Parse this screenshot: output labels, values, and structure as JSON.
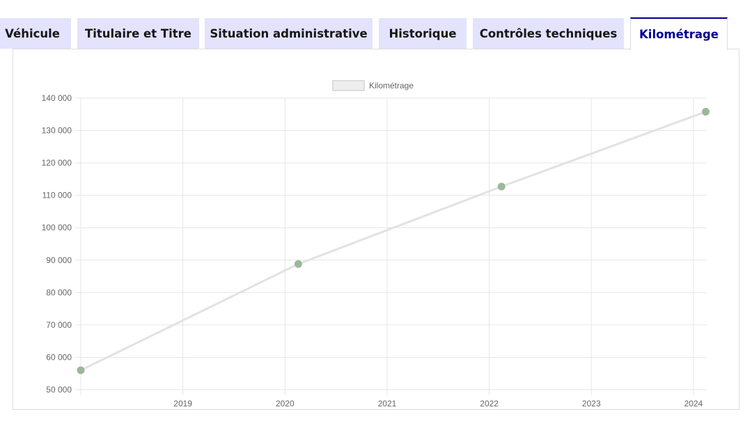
{
  "tabs": [
    {
      "label": "Véhicule",
      "active": false
    },
    {
      "label": "Titulaire et Titre",
      "active": false
    },
    {
      "label": "Situation administrative",
      "active": false
    },
    {
      "label": "Historique",
      "active": false
    },
    {
      "label": "Contrôles techniques",
      "active": false
    },
    {
      "label": "Kilométrage",
      "active": true
    }
  ],
  "colors": {
    "tab_background": "#e3e3fd",
    "tab_active_accent": "#000091",
    "line": "#e2e2e2",
    "point": "#9bb89a"
  },
  "chart_data": {
    "type": "line",
    "title": "",
    "xlabel": "",
    "ylabel": "",
    "legend": {
      "entries": [
        "Kilométrage"
      ],
      "placement": "top"
    },
    "grid": true,
    "series": [
      {
        "name": "Kilométrage",
        "x": [
          2018.0,
          2020.13,
          2022.12,
          2024.12
        ],
        "y": [
          56000,
          88800,
          112700,
          135800
        ]
      }
    ],
    "xlim": [
      2018.0,
      2024.13
    ],
    "ylim": [
      50000,
      140000
    ],
    "x_ticks": [
      2019,
      2020,
      2021,
      2022,
      2023,
      2024
    ],
    "x_tick_labels": [
      "2019",
      "2020",
      "2021",
      "2022",
      "2023",
      "2024"
    ],
    "y_ticks": [
      50000,
      60000,
      70000,
      80000,
      90000,
      100000,
      110000,
      120000,
      130000,
      140000
    ],
    "y_tick_labels": [
      "50 000",
      "60 000",
      "70 000",
      "80 000",
      "90 000",
      "100 000",
      "110 000",
      "120 000",
      "130 000",
      "140 000"
    ]
  }
}
